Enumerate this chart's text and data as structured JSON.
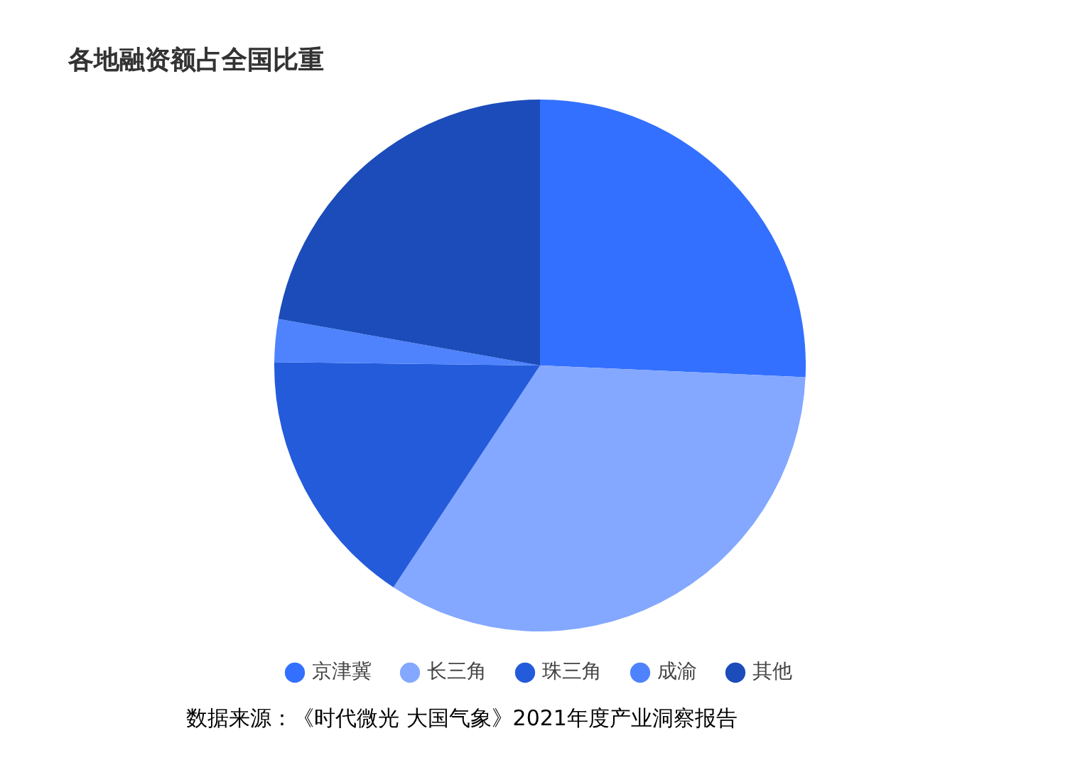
{
  "chart_data": {
    "type": "pie",
    "title": "各地融资额占全国比重",
    "categories": [
      "京津冀",
      "长三角",
      "珠三角",
      "成渝",
      "其他"
    ],
    "values": [
      25.7,
      33.6,
      15.9,
      2.6,
      22.2
    ],
    "colors": [
      "#3370ff",
      "#84a8ff",
      "#245bdb",
      "#4e83fd",
      "#1c4cba"
    ],
    "legend": "bottom",
    "annotations": [
      "数据来源：《时代微光 大国气象》2021年度产业洞察报告"
    ]
  }
}
